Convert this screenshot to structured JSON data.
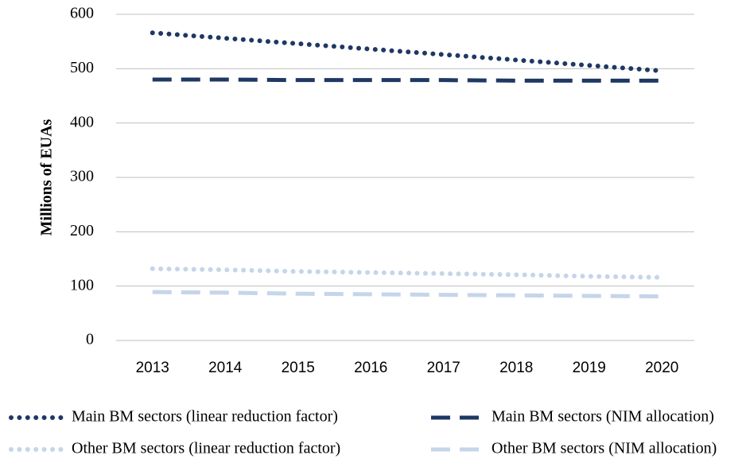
{
  "chart_data": {
    "type": "line",
    "y_label": "Millions of EUAs",
    "categories": [
      "2013",
      "2014",
      "2015",
      "2016",
      "2017",
      "2018",
      "2019",
      "2020"
    ],
    "series": [
      {
        "name": "Main BM sectors (linear reduction factor)",
        "color": "#1f3864",
        "style": "dotted",
        "values": [
          566,
          556,
          546,
          536,
          526,
          516,
          506,
          496
        ]
      },
      {
        "name": "Main BM sectors (NIM allocation)",
        "color": "#1f3864",
        "style": "dashed",
        "values": [
          480,
          480,
          479,
          479,
          479,
          478,
          478,
          478
        ]
      },
      {
        "name": "Other BM sectors (linear reduction factor)",
        "color": "#c5d5ea",
        "style": "dotted",
        "values": [
          132,
          130,
          127,
          125,
          123,
          121,
          118,
          116
        ]
      },
      {
        "name": "Other BM sectors (NIM allocation)",
        "color": "#c5d5ea",
        "style": "dashed",
        "values": [
          89,
          88,
          86,
          85,
          84,
          83,
          82,
          81
        ]
      }
    ],
    "ylim": [
      0,
      600
    ],
    "yticks": [
      0,
      100,
      200,
      300,
      400,
      500,
      600
    ],
    "grid": true,
    "legend": "bottom"
  }
}
